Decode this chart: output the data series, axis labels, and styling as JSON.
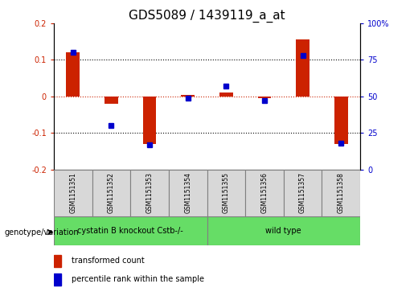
{
  "title": "GDS5089 / 1439119_a_at",
  "samples": [
    "GSM1151351",
    "GSM1151352",
    "GSM1151353",
    "GSM1151354",
    "GSM1151355",
    "GSM1151356",
    "GSM1151357",
    "GSM1151358"
  ],
  "red_values": [
    0.12,
    -0.02,
    -0.13,
    0.005,
    0.01,
    -0.005,
    0.155,
    -0.13
  ],
  "blue_values": [
    80,
    30,
    17,
    49,
    57,
    47,
    78,
    18
  ],
  "groups": [
    {
      "label": "cystatin B knockout Cstb-/-",
      "start": 0,
      "end": 3
    },
    {
      "label": "wild type",
      "start": 4,
      "end": 7
    }
  ],
  "group_color": "#66dd66",
  "bar_color": "#cc2200",
  "dot_color": "#0000cc",
  "sample_box_color": "#d8d8d8",
  "ylim_left": [
    -0.2,
    0.2
  ],
  "ylim_right": [
    0,
    100
  ],
  "yticks_left": [
    -0.2,
    -0.1,
    0.0,
    0.1,
    0.2
  ],
  "yticks_right": [
    0,
    25,
    50,
    75,
    100
  ],
  "hlines_black": [
    0.1,
    -0.1
  ],
  "hline_red": 0.0,
  "legend_red": "transformed count",
  "legend_blue": "percentile rank within the sample",
  "genotype_label": "genotype/variation",
  "title_fontsize": 11,
  "tick_fontsize": 7,
  "sample_fontsize": 5.5,
  "group_fontsize": 7,
  "legend_fontsize": 7
}
